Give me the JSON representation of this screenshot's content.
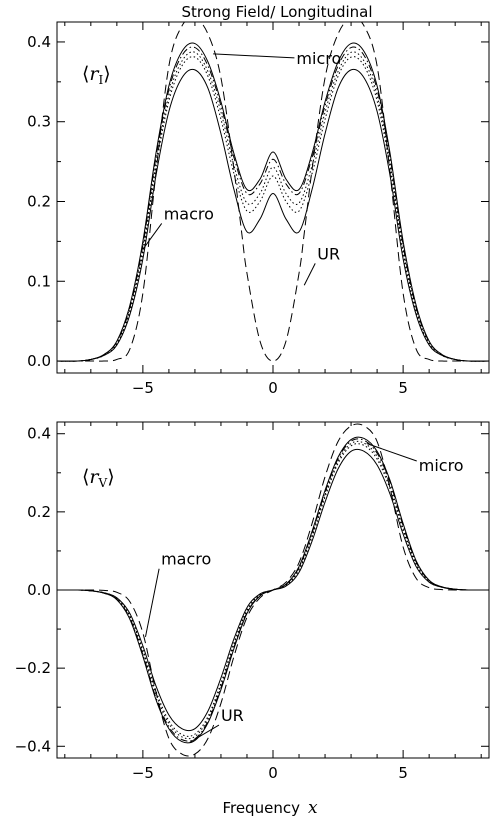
{
  "title": "Strong Field/ Longitudinal",
  "xlabel": "Frequency",
  "xlabel_var": "x",
  "chart_data": [
    {
      "type": "line",
      "panel_label": {
        "open": "⟨",
        "var": "r",
        "sub": "I",
        "close": "⟩"
      },
      "xlim": [
        -8.3,
        8.3
      ],
      "ylim": [
        -0.015,
        0.425
      ],
      "xticks": [
        -5,
        0,
        5
      ],
      "xtick_labels": [
        "−5",
        "0",
        "5"
      ],
      "yticks": [
        0.0,
        0.1,
        0.2,
        0.3,
        0.4
      ],
      "ytick_labels": [
        "0.0",
        "0.1",
        "0.2",
        "0.3",
        "0.4"
      ],
      "annotations": [
        {
          "text": "micro",
          "point": [
            -2.3,
            0.385
          ],
          "label_at": [
            0.9,
            0.38
          ]
        },
        {
          "text": "macro",
          "point": [
            -5.0,
            0.14
          ],
          "label_at": [
            -4.2,
            0.185
          ]
        },
        {
          "text": "UR",
          "point": [
            1.2,
            0.095
          ],
          "label_at": [
            1.7,
            0.135
          ]
        }
      ],
      "series": [
        {
          "style": "dashed",
          "x": [
            -8.3,
            -7.0,
            -6.5,
            -6.0,
            -5.5,
            -5.0,
            -4.5,
            -4.0,
            -3.5,
            -3.0,
            -2.5,
            -2.0,
            -1.5,
            -1.2,
            -1.0,
            -0.5,
            0.0,
            0.5,
            1.0,
            1.2,
            1.5,
            2.0,
            2.5,
            3.0,
            3.5,
            4.0,
            4.5,
            5.0,
            5.5,
            6.0,
            6.5,
            7.0,
            8.3
          ],
          "y": [
            0.0,
            0.0,
            0.0,
            0.002,
            0.015,
            0.085,
            0.235,
            0.37,
            0.42,
            0.43,
            0.41,
            0.355,
            0.24,
            0.16,
            0.11,
            0.025,
            0.0,
            0.025,
            0.11,
            0.16,
            0.24,
            0.355,
            0.41,
            0.43,
            0.42,
            0.37,
            0.235,
            0.085,
            0.015,
            0.002,
            0.0,
            0.0,
            0.0
          ]
        },
        {
          "style": "solid",
          "x": [
            -8.3,
            -7.5,
            -7.0,
            -6.5,
            -6.0,
            -5.5,
            -5.0,
            -4.5,
            -4.0,
            -3.5,
            -3.0,
            -2.5,
            -2.0,
            -1.5,
            -1.0,
            -0.5,
            0.0,
            0.5,
            1.0,
            1.5,
            2.0,
            2.5,
            3.0,
            3.5,
            4.0,
            4.5,
            5.0,
            5.5,
            6.0,
            6.5,
            7.0,
            7.5,
            8.3
          ],
          "y": [
            0.0,
            0.0,
            0.002,
            0.008,
            0.025,
            0.07,
            0.15,
            0.26,
            0.345,
            0.388,
            0.398,
            0.375,
            0.325,
            0.26,
            0.215,
            0.228,
            0.262,
            0.228,
            0.215,
            0.26,
            0.325,
            0.375,
            0.398,
            0.388,
            0.345,
            0.26,
            0.15,
            0.07,
            0.025,
            0.008,
            0.002,
            0.0,
            0.0
          ]
        },
        {
          "style": "dashdot",
          "x": [
            -8.3,
            -7.5,
            -7.0,
            -6.5,
            -6.0,
            -5.5,
            -5.0,
            -4.5,
            -4.0,
            -3.5,
            -3.0,
            -2.5,
            -2.0,
            -1.5,
            -1.0,
            -0.5,
            0.0,
            0.5,
            1.0,
            1.5,
            2.0,
            2.5,
            3.0,
            3.5,
            4.0,
            4.5,
            5.0,
            5.5,
            6.0,
            6.5,
            7.0,
            7.5,
            8.3
          ],
          "y": [
            0.0,
            0.0,
            0.002,
            0.008,
            0.024,
            0.067,
            0.145,
            0.255,
            0.34,
            0.383,
            0.393,
            0.37,
            0.32,
            0.255,
            0.21,
            0.222,
            0.253,
            0.222,
            0.21,
            0.255,
            0.32,
            0.37,
            0.393,
            0.383,
            0.34,
            0.255,
            0.145,
            0.067,
            0.024,
            0.008,
            0.002,
            0.0,
            0.0
          ]
        },
        {
          "style": "dotted",
          "x": [
            -8.3,
            -7.5,
            -7.0,
            -6.5,
            -6.0,
            -5.5,
            -5.0,
            -4.5,
            -4.0,
            -3.5,
            -3.0,
            -2.5,
            -2.0,
            -1.5,
            -1.0,
            -0.5,
            0.0,
            0.5,
            1.0,
            1.5,
            2.0,
            2.5,
            3.0,
            3.5,
            4.0,
            4.5,
            5.0,
            5.5,
            6.0,
            6.5,
            7.0,
            7.5,
            8.3
          ],
          "y": [
            0.0,
            0.0,
            0.002,
            0.007,
            0.022,
            0.064,
            0.14,
            0.248,
            0.333,
            0.376,
            0.387,
            0.363,
            0.312,
            0.245,
            0.198,
            0.21,
            0.243,
            0.21,
            0.198,
            0.245,
            0.312,
            0.363,
            0.387,
            0.376,
            0.333,
            0.248,
            0.14,
            0.064,
            0.022,
            0.007,
            0.002,
            0.0,
            0.0
          ]
        },
        {
          "style": "dotted",
          "x": [
            -8.3,
            -7.5,
            -7.0,
            -6.5,
            -6.0,
            -5.5,
            -5.0,
            -4.5,
            -4.0,
            -3.5,
            -3.0,
            -2.5,
            -2.0,
            -1.5,
            -1.0,
            -0.5,
            0.0,
            0.5,
            1.0,
            1.5,
            2.0,
            2.5,
            3.0,
            3.5,
            4.0,
            4.5,
            5.0,
            5.5,
            6.0,
            6.5,
            7.0,
            7.5,
            8.3
          ],
          "y": [
            0.0,
            0.0,
            0.002,
            0.007,
            0.021,
            0.061,
            0.135,
            0.242,
            0.326,
            0.37,
            0.381,
            0.357,
            0.303,
            0.235,
            0.188,
            0.2,
            0.232,
            0.2,
            0.188,
            0.235,
            0.303,
            0.357,
            0.381,
            0.37,
            0.326,
            0.242,
            0.135,
            0.061,
            0.021,
            0.007,
            0.002,
            0.0,
            0.0
          ]
        },
        {
          "style": "solid",
          "x": [
            -8.3,
            -7.5,
            -7.0,
            -6.5,
            -6.0,
            -5.5,
            -5.0,
            -4.5,
            -4.0,
            -3.5,
            -3.0,
            -2.5,
            -2.0,
            -1.5,
            -1.0,
            -0.5,
            0.0,
            0.5,
            1.0,
            1.5,
            2.0,
            2.5,
            3.0,
            3.5,
            4.0,
            4.5,
            5.0,
            5.5,
            6.0,
            6.5,
            7.0,
            7.5,
            8.3
          ],
          "y": [
            0.0,
            0.0,
            0.002,
            0.007,
            0.02,
            0.058,
            0.128,
            0.232,
            0.313,
            0.355,
            0.365,
            0.342,
            0.285,
            0.215,
            0.162,
            0.178,
            0.21,
            0.178,
            0.162,
            0.215,
            0.285,
            0.342,
            0.365,
            0.355,
            0.313,
            0.232,
            0.128,
            0.058,
            0.02,
            0.007,
            0.002,
            0.0,
            0.0
          ]
        }
      ]
    },
    {
      "type": "line",
      "panel_label": {
        "open": "⟨",
        "var": "r",
        "sub": "V",
        "close": "⟩"
      },
      "xlim": [
        -8.3,
        8.3
      ],
      "ylim": [
        -0.43,
        0.43
      ],
      "xticks": [
        -5,
        0,
        5
      ],
      "xtick_labels": [
        "−5",
        "0",
        "5"
      ],
      "yticks": [
        -0.4,
        -0.2,
        0.0,
        0.2,
        0.4
      ],
      "ytick_labels": [
        "−0.4",
        "−0.2",
        "0.0",
        "0.2",
        "0.4"
      ],
      "annotations": [
        {
          "text": "micro",
          "point": [
            3.6,
            0.375
          ],
          "label_at": [
            5.6,
            0.32
          ]
        },
        {
          "text": "macro",
          "point": [
            -4.9,
            -0.12
          ],
          "label_at": [
            -4.3,
            0.08
          ]
        },
        {
          "text": "UR",
          "point": [
            -3.2,
            -0.39
          ],
          "label_at": [
            -2.0,
            -0.32
          ]
        }
      ],
      "series": [
        {
          "style": "dashed",
          "x": [
            -8.3,
            -7.0,
            -6.5,
            -6.0,
            -5.5,
            -5.0,
            -4.5,
            -4.0,
            -3.5,
            -3.0,
            -2.5,
            -2.0,
            -1.5,
            -1.0,
            -0.5,
            0.0,
            0.5,
            1.0,
            1.5,
            2.0,
            2.5,
            3.0,
            3.5,
            4.0,
            4.5,
            5.0,
            5.5,
            6.0,
            6.5,
            7.0,
            8.3
          ],
          "y": [
            0.0,
            0.0,
            -0.001,
            -0.006,
            -0.03,
            -0.11,
            -0.26,
            -0.38,
            -0.42,
            -0.42,
            -0.38,
            -0.29,
            -0.17,
            -0.07,
            -0.02,
            0.0,
            0.02,
            0.07,
            0.17,
            0.29,
            0.38,
            0.42,
            0.42,
            0.38,
            0.26,
            0.11,
            0.03,
            0.006,
            0.001,
            0.0,
            0.0
          ]
        },
        {
          "style": "solid",
          "x": [
            -8.3,
            -7.5,
            -7.0,
            -6.5,
            -6.0,
            -5.5,
            -5.0,
            -4.5,
            -4.0,
            -3.5,
            -3.0,
            -2.5,
            -2.0,
            -1.5,
            -1.0,
            -0.5,
            0.0,
            0.5,
            1.0,
            1.5,
            2.0,
            2.5,
            3.0,
            3.5,
            4.0,
            4.5,
            5.0,
            5.5,
            6.0,
            6.5,
            7.0,
            7.5,
            8.3
          ],
          "y": [
            0.0,
            0.0,
            -0.002,
            -0.008,
            -0.025,
            -0.075,
            -0.17,
            -0.28,
            -0.355,
            -0.388,
            -0.385,
            -0.34,
            -0.255,
            -0.15,
            -0.06,
            -0.015,
            0.0,
            0.015,
            0.06,
            0.15,
            0.255,
            0.34,
            0.385,
            0.388,
            0.355,
            0.28,
            0.17,
            0.075,
            0.025,
            0.008,
            0.002,
            0.0,
            0.0
          ]
        },
        {
          "style": "dashdot",
          "x": [
            -8.3,
            -7.5,
            -7.0,
            -6.5,
            -6.0,
            -5.5,
            -5.0,
            -4.5,
            -4.0,
            -3.5,
            -3.0,
            -2.5,
            -2.0,
            -1.5,
            -1.0,
            -0.5,
            0.0,
            0.5,
            1.0,
            1.5,
            2.0,
            2.5,
            3.0,
            3.5,
            4.0,
            4.5,
            5.0,
            5.5,
            6.0,
            6.5,
            7.0,
            7.5,
            8.3
          ],
          "y": [
            0.0,
            0.0,
            -0.002,
            -0.008,
            -0.024,
            -0.072,
            -0.165,
            -0.275,
            -0.35,
            -0.383,
            -0.381,
            -0.336,
            -0.25,
            -0.146,
            -0.058,
            -0.014,
            0.0,
            0.014,
            0.058,
            0.146,
            0.25,
            0.336,
            0.381,
            0.383,
            0.35,
            0.275,
            0.165,
            0.072,
            0.024,
            0.008,
            0.002,
            0.0,
            0.0
          ]
        },
        {
          "style": "dotted",
          "x": [
            -8.3,
            -7.5,
            -7.0,
            -6.5,
            -6.0,
            -5.5,
            -5.0,
            -4.5,
            -4.0,
            -3.5,
            -3.0,
            -2.5,
            -2.0,
            -1.5,
            -1.0,
            -0.5,
            0.0,
            0.5,
            1.0,
            1.5,
            2.0,
            2.5,
            3.0,
            3.5,
            4.0,
            4.5,
            5.0,
            5.5,
            6.0,
            6.5,
            7.0,
            7.5,
            8.3
          ],
          "y": [
            0.0,
            0.0,
            -0.002,
            -0.007,
            -0.022,
            -0.068,
            -0.158,
            -0.266,
            -0.342,
            -0.376,
            -0.375,
            -0.33,
            -0.244,
            -0.14,
            -0.054,
            -0.013,
            0.0,
            0.013,
            0.054,
            0.14,
            0.244,
            0.33,
            0.375,
            0.376,
            0.342,
            0.266,
            0.158,
            0.068,
            0.022,
            0.007,
            0.002,
            0.0,
            0.0
          ]
        },
        {
          "style": "dotted",
          "x": [
            -8.3,
            -7.5,
            -7.0,
            -6.5,
            -6.0,
            -5.5,
            -5.0,
            -4.5,
            -4.0,
            -3.5,
            -3.0,
            -2.5,
            -2.0,
            -1.5,
            -1.0,
            -0.5,
            0.0,
            0.5,
            1.0,
            1.5,
            2.0,
            2.5,
            3.0,
            3.5,
            4.0,
            4.5,
            5.0,
            5.5,
            6.0,
            6.5,
            7.0,
            7.5,
            8.3
          ],
          "y": [
            0.0,
            0.0,
            -0.002,
            -0.007,
            -0.021,
            -0.065,
            -0.152,
            -0.258,
            -0.335,
            -0.37,
            -0.369,
            -0.324,
            -0.238,
            -0.135,
            -0.051,
            -0.012,
            0.0,
            0.012,
            0.051,
            0.135,
            0.238,
            0.324,
            0.369,
            0.37,
            0.335,
            0.258,
            0.152,
            0.065,
            0.021,
            0.007,
            0.002,
            0.0,
            0.0
          ]
        },
        {
          "style": "solid",
          "x": [
            -8.3,
            -7.5,
            -7.0,
            -6.5,
            -6.0,
            -5.5,
            -5.0,
            -4.5,
            -4.0,
            -3.5,
            -3.0,
            -2.5,
            -2.0,
            -1.5,
            -1.0,
            -0.5,
            0.0,
            0.5,
            1.0,
            1.5,
            2.0,
            2.5,
            3.0,
            3.5,
            4.0,
            4.5,
            5.0,
            5.5,
            6.0,
            6.5,
            7.0,
            7.5,
            8.3
          ],
          "y": [
            0.0,
            0.0,
            -0.002,
            -0.007,
            -0.02,
            -0.06,
            -0.143,
            -0.245,
            -0.32,
            -0.355,
            -0.355,
            -0.31,
            -0.225,
            -0.125,
            -0.045,
            -0.01,
            0.0,
            0.01,
            0.045,
            0.125,
            0.225,
            0.31,
            0.355,
            0.355,
            0.32,
            0.245,
            0.143,
            0.06,
            0.02,
            0.007,
            0.002,
            0.0,
            0.0
          ]
        }
      ]
    }
  ]
}
